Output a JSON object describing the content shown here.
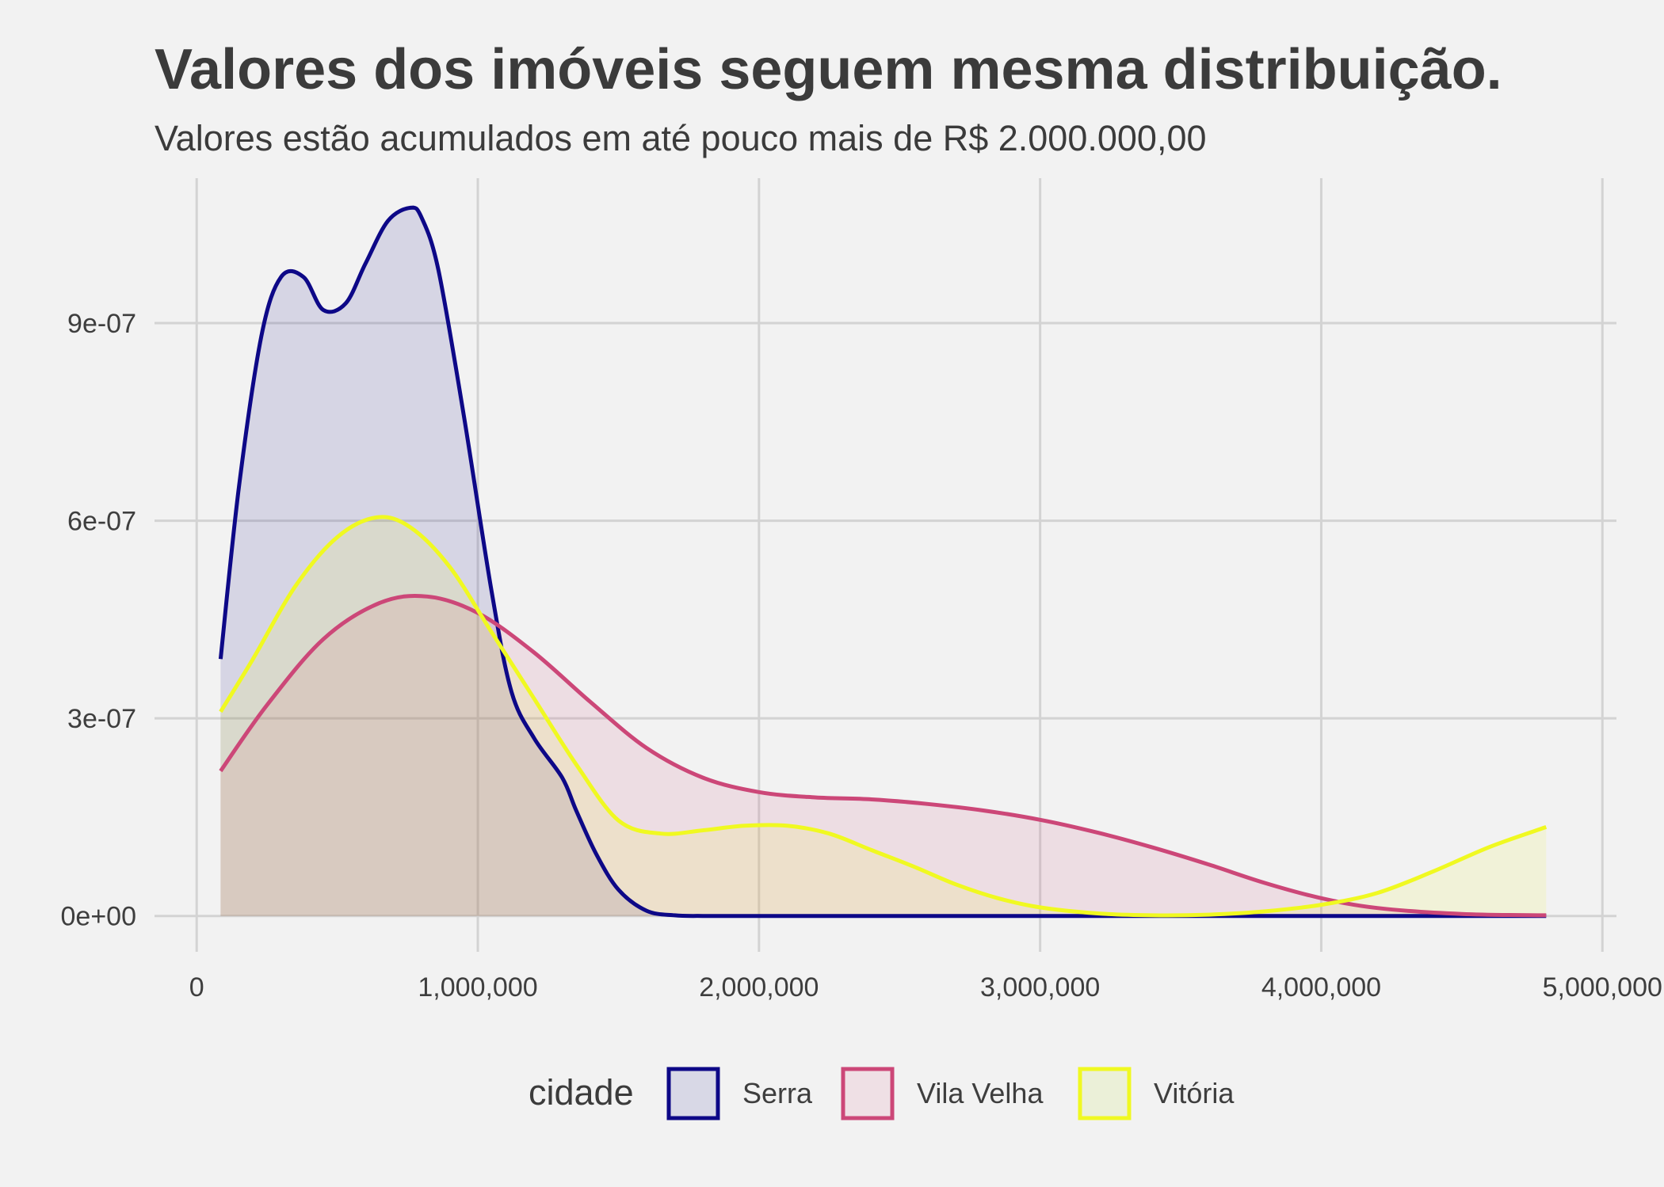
{
  "chart_data": {
    "type": "area",
    "title": "Valores dos imóveis seguem mesma distribuição.",
    "subtitle": "Valores estão acumulados em até pouco mais de R$ 2.000.000,00",
    "xlim": [
      -150000,
      5050000
    ],
    "ylim": [
      -4e-08,
      1.12e-06
    ],
    "x_ticks": [
      {
        "value": 0,
        "label": "0"
      },
      {
        "value": 1000000,
        "label": "1,000,000"
      },
      {
        "value": 2000000,
        "label": "2,000,000"
      },
      {
        "value": 3000000,
        "label": "3,000,000"
      },
      {
        "value": 4000000,
        "label": "4,000,000"
      },
      {
        "value": 5000000,
        "label": "5,000,000"
      }
    ],
    "y_ticks": [
      {
        "value": 0,
        "label": "0e+00"
      },
      {
        "value": 3e-07,
        "label": "3e-07"
      },
      {
        "value": 6e-07,
        "label": "6e-07"
      },
      {
        "value": 9e-07,
        "label": "9e-07"
      }
    ],
    "grid": true,
    "legend": {
      "title": "cidade",
      "position": "bottom"
    },
    "series": [
      {
        "name": "Serra",
        "color": "#0d0887",
        "fill": "#d8d8e6",
        "x": [
          85000,
          150000,
          230000,
          300000,
          380000,
          450000,
          530000,
          600000,
          680000,
          760000,
          800000,
          860000,
          950000,
          1050000,
          1120000,
          1200000,
          1300000,
          1350000,
          1420000,
          1500000,
          1600000,
          1700000,
          1800000,
          2000000,
          3000000,
          4000000,
          4800000
        ],
        "y": [
          3.9e-07,
          6.5e-07,
          8.8e-07,
          9.7e-07,
          9.7e-07,
          9.2e-07,
          9.3e-07,
          9.9e-07,
          1.055e-06,
          1.075e-06,
          1.06e-06,
          9.8e-07,
          7.6e-07,
          4.9e-07,
          3.4e-07,
          2.7e-07,
          2.1e-07,
          1.6e-07,
          9.5e-08,
          4e-08,
          8e-09,
          1e-09,
          0,
          0,
          0,
          0,
          0
        ]
      },
      {
        "name": "Vila Velha",
        "color": "#cc4778",
        "fill": "#efe0e5",
        "x": [
          85000,
          250000,
          450000,
          650000,
          820000,
          1000000,
          1200000,
          1400000,
          1600000,
          1800000,
          2000000,
          2200000,
          2400000,
          2600000,
          2800000,
          3000000,
          3200000,
          3400000,
          3600000,
          3800000,
          4000000,
          4200000,
          4500000,
          4800000
        ],
        "y": [
          2.2e-07,
          3.2e-07,
          4.2e-07,
          4.75e-07,
          4.85e-07,
          4.6e-07,
          4e-07,
          3.25e-07,
          2.55e-07,
          2.1e-07,
          1.88e-07,
          1.8e-07,
          1.77e-07,
          1.7e-07,
          1.6e-07,
          1.46e-07,
          1.27e-07,
          1.04e-07,
          7.8e-08,
          5e-08,
          2.7e-08,
          1.2e-08,
          3e-09,
          1e-09
        ]
      },
      {
        "name": "Vitória",
        "color": "#f0f921",
        "fill": "#ebf0d8",
        "x": [
          85000,
          200000,
          350000,
          500000,
          640000,
          760000,
          900000,
          1050000,
          1200000,
          1350000,
          1500000,
          1650000,
          1800000,
          1950000,
          2100000,
          2250000,
          2400000,
          2550000,
          2700000,
          2850000,
          3000000,
          3200000,
          3400000,
          3600000,
          3800000,
          4000000,
          4200000,
          4400000,
          4600000,
          4800000
        ],
        "y": [
          3.1e-07,
          3.9e-07,
          5e-07,
          5.75e-07,
          6.05e-07,
          5.9e-07,
          5.3e-07,
          4.3e-07,
          3.3e-07,
          2.3e-07,
          1.45e-07,
          1.25e-07,
          1.3e-07,
          1.37e-07,
          1.37e-07,
          1.25e-07,
          1e-07,
          7.5e-08,
          4.8e-08,
          2.7e-08,
          1.3e-08,
          4e-09,
          1e-09,
          2e-09,
          7e-09,
          1.7e-08,
          3.5e-08,
          6.8e-08,
          1.05e-07,
          1.35e-07
        ]
      }
    ]
  }
}
